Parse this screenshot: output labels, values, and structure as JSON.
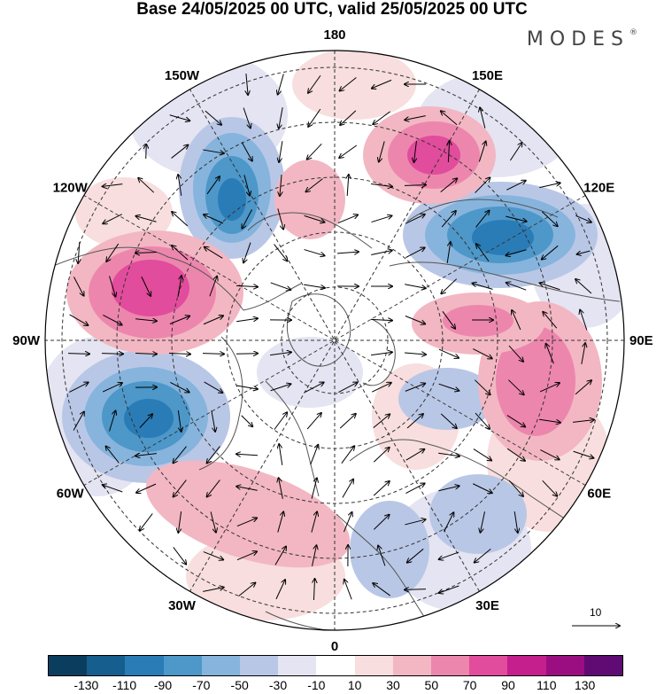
{
  "title": "Base 24/05/2025 00 UTC, valid 25/05/2025 00 UTC",
  "brand": "MODES",
  "brand_mark": "®",
  "lon_labels": [
    "180",
    "150E",
    "120E",
    "90E",
    "60E",
    "30E",
    "0",
    "30W",
    "60W",
    "90W",
    "120W",
    "150W"
  ],
  "vector_scale": "10",
  "colorbar": {
    "colors": [
      "#0b3e5e",
      "#155e8d",
      "#2a7cb6",
      "#4d97c9",
      "#86b4dd",
      "#b9c7e6",
      "#e4e4f2",
      "#ffffff",
      "#f8dede",
      "#f2b7c3",
      "#ed86ad",
      "#e24c9c",
      "#c51e8d",
      "#9b0e81",
      "#600a74"
    ],
    "tick_labels": [
      "-130",
      "-110",
      "-90",
      "-70",
      "-50",
      "-30",
      "-10",
      "10",
      "30",
      "50",
      "70",
      "90",
      "110",
      "130"
    ]
  },
  "anomalies": [
    {
      "sign": "negative",
      "level": 4,
      "color_key": "blue"
    },
    {
      "sign": "positive",
      "level": 4,
      "color_key": "pink"
    }
  ]
}
